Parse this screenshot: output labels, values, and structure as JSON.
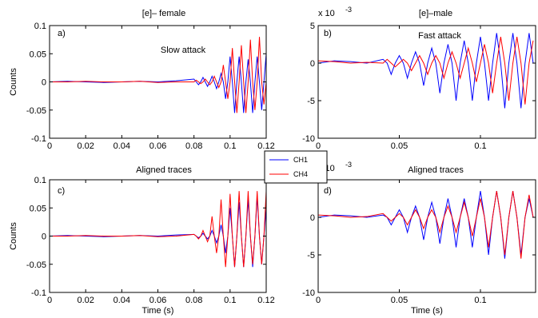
{
  "chart_data": [
    {
      "type": "line",
      "title": "[e]– female",
      "annotations": [
        "a)",
        "Slow attack"
      ],
      "ylabel": "Counts",
      "x": [
        0,
        0.01,
        0.02,
        0.03,
        0.04,
        0.05,
        0.06,
        0.07,
        0.08,
        0.08125,
        0.0825,
        0.08375,
        0.085,
        0.08625,
        0.0875,
        0.08875,
        0.09,
        0.09125,
        0.0925,
        0.09375,
        0.095,
        0.09625,
        0.0975,
        0.09875,
        0.1,
        0.10125,
        0.1025,
        0.10375,
        0.105,
        0.10625,
        0.1075,
        0.10875,
        0.11,
        0.11125,
        0.1125,
        0.11375,
        0.115,
        0.11625,
        0.1175,
        0.11875,
        0.12
      ],
      "series": [
        {
          "name": "CH1",
          "color": "#0000ff",
          "values": [
            0,
            0.001,
            0,
            -0.001,
            0,
            0.001,
            0,
            0.002,
            0.005,
            0,
            -0.005,
            0,
            0.008,
            0,
            -0.008,
            0,
            0.01,
            0,
            -0.012,
            0,
            0.015,
            0,
            -0.03,
            0,
            0.045,
            0,
            -0.055,
            0,
            0.045,
            0,
            -0.055,
            0,
            0.04,
            0,
            -0.055,
            0,
            0.045,
            0,
            -0.05,
            0,
            0.05
          ]
        },
        {
          "name": "CH4",
          "color": "#ff0000",
          "values": [
            0,
            0,
            0.001,
            0,
            0,
            0.001,
            -0.001,
            0,
            0,
            0.003,
            0,
            -0.003,
            0,
            0.005,
            0,
            -0.005,
            0,
            0.01,
            0,
            -0.01,
            0,
            0.03,
            0,
            -0.03,
            0,
            0.06,
            0,
            -0.055,
            0,
            0.065,
            0,
            -0.055,
            0,
            0.075,
            0,
            -0.05,
            0,
            0.08,
            0,
            -0.04,
            0
          ]
        }
      ],
      "xlim": [
        0,
        0.12
      ],
      "xticks": [
        0,
        0.02,
        0.04,
        0.06,
        0.08,
        0.1,
        0.12
      ],
      "ylim": [
        -0.1,
        0.1
      ],
      "yticks": [
        -0.1,
        -0.05,
        0,
        0.05,
        0.1
      ]
    },
    {
      "type": "line",
      "title": "[e]–male",
      "annotations": [
        "b)",
        "Fast attack"
      ],
      "y_scale": {
        "base": "x 10",
        "exponent": "-3"
      },
      "x": [
        0,
        0.01,
        0.02,
        0.03,
        0.04,
        0.0425,
        0.045,
        0.0475,
        0.05,
        0.0525,
        0.055,
        0.0575,
        0.06,
        0.0625,
        0.065,
        0.0675,
        0.07,
        0.0725,
        0.075,
        0.0775,
        0.08,
        0.0825,
        0.085,
        0.0875,
        0.09,
        0.0925,
        0.095,
        0.0975,
        0.1,
        0.1025,
        0.105,
        0.1075,
        0.11,
        0.1125,
        0.115,
        0.1175,
        0.12,
        0.1225,
        0.125,
        0.1275,
        0.13,
        0.1325
      ],
      "series": [
        {
          "color": "#0000ff",
          "values": [
            0,
            0.3,
            0.2,
            0,
            0.5,
            0,
            -1.5,
            0,
            1,
            0,
            -2,
            0,
            1.5,
            0,
            -3,
            0,
            2,
            0,
            -4,
            0,
            2.5,
            0,
            -5,
            0,
            3,
            0,
            -5,
            0,
            3.5,
            0,
            -5,
            0,
            4,
            0,
            -6,
            0,
            4,
            0,
            -6,
            0,
            4,
            0
          ]
        },
        {
          "color": "#ff0000",
          "values": [
            0.3,
            0.2,
            0,
            0.1,
            0,
            0.5,
            0,
            -0.5,
            0,
            0.5,
            0,
            -1,
            0,
            1,
            0,
            -1.5,
            0,
            1,
            0,
            -2,
            0,
            1.5,
            0,
            -2,
            0,
            2,
            0,
            -2.5,
            0,
            2.5,
            0,
            -4,
            0,
            3.5,
            0,
            -5,
            0,
            3.5,
            0,
            -5.5,
            0,
            3
          ]
        }
      ],
      "xlim": [
        0,
        0.134
      ],
      "xticks": [
        0,
        0.05,
        0.1
      ],
      "ylim": [
        -10,
        5
      ],
      "yticks": [
        -10,
        -5,
        0,
        5
      ]
    },
    {
      "type": "line",
      "title": "Aligned traces",
      "annotations": [
        "c)"
      ],
      "ylabel": "Counts",
      "xlabel": "Time (s)",
      "x": [
        0,
        0.01,
        0.02,
        0.03,
        0.04,
        0.05,
        0.06,
        0.07,
        0.08,
        0.08125,
        0.0825,
        0.08375,
        0.085,
        0.08625,
        0.0875,
        0.08875,
        0.09,
        0.09125,
        0.0925,
        0.09375,
        0.095,
        0.09625,
        0.0975,
        0.09875,
        0.1,
        0.10125,
        0.1025,
        0.10375,
        0.105,
        0.10625,
        0.1075,
        0.10875,
        0.11,
        0.11125,
        0.1125,
        0.11375,
        0.115,
        0.11625,
        0.1175,
        0.11875,
        0.12
      ],
      "series": [
        {
          "color": "#0000ff",
          "values": [
            0,
            0.001,
            0,
            -0.001,
            0,
            0.001,
            0,
            0.002,
            0.003,
            0,
            -0.003,
            0,
            0.005,
            0,
            -0.005,
            0,
            0.01,
            0,
            -0.012,
            0,
            0.02,
            0,
            -0.03,
            0,
            0.05,
            0,
            -0.055,
            0,
            0.06,
            0,
            -0.055,
            0,
            0.065,
            0,
            -0.055,
            0,
            0.07,
            0,
            -0.05,
            0,
            0.05
          ]
        },
        {
          "color": "#ff0000",
          "values": [
            0,
            0,
            0.001,
            0,
            0,
            0.001,
            -0.001,
            0,
            0.003,
            0,
            -0.005,
            0,
            0.01,
            0,
            -0.01,
            0,
            0.035,
            0,
            -0.03,
            0,
            0.065,
            0,
            -0.055,
            0,
            0.075,
            0,
            -0.055,
            0,
            0.08,
            0,
            -0.055,
            0,
            0.08,
            0,
            -0.05,
            0,
            0.08,
            0,
            -0.05,
            0,
            0.08
          ]
        }
      ],
      "xlim": [
        0,
        0.12
      ],
      "xticks": [
        0,
        0.02,
        0.04,
        0.06,
        0.08,
        0.1,
        0.12
      ],
      "ylim": [
        -0.1,
        0.1
      ],
      "yticks": [
        -0.1,
        -0.05,
        0,
        0.05,
        0.1
      ]
    },
    {
      "type": "line",
      "title": "Aligned traces",
      "annotations": [
        "d)"
      ],
      "xlabel": "Time (s)",
      "y_scale": {
        "base": "x 10",
        "exponent": "-3"
      },
      "x": [
        0,
        0.01,
        0.02,
        0.03,
        0.04,
        0.0425,
        0.045,
        0.0475,
        0.05,
        0.0525,
        0.055,
        0.0575,
        0.06,
        0.0625,
        0.065,
        0.0675,
        0.07,
        0.0725,
        0.075,
        0.0775,
        0.08,
        0.0825,
        0.085,
        0.0875,
        0.09,
        0.0925,
        0.095,
        0.0975,
        0.1,
        0.1025,
        0.105,
        0.1075,
        0.11,
        0.1125,
        0.115,
        0.1175,
        0.12,
        0.1225,
        0.125,
        0.1275,
        0.13,
        0.1325
      ],
      "series": [
        {
          "color": "#0000ff",
          "values": [
            0,
            0.3,
            0.2,
            0,
            0.3,
            0,
            -1,
            0,
            1,
            0,
            -2,
            0,
            1.5,
            0,
            -3,
            0,
            2,
            0,
            -3.5,
            0,
            2.5,
            0,
            -4,
            0,
            2.5,
            0,
            -4,
            0,
            3.5,
            0,
            -5,
            0,
            3.5,
            0,
            -5.5,
            0,
            3.5,
            0,
            -5,
            0,
            2.5,
            0
          ]
        },
        {
          "color": "#ff0000",
          "values": [
            0.3,
            0.2,
            0,
            0.1,
            0.5,
            0,
            -0.5,
            0,
            0.5,
            0,
            -1,
            0,
            1,
            0,
            -1.5,
            0,
            1,
            0,
            -2,
            0,
            1.5,
            0,
            -2,
            0,
            2,
            0,
            -2.5,
            0,
            2.5,
            0,
            -4,
            0,
            3.5,
            0,
            -5,
            0,
            3.5,
            0,
            -5.5,
            0,
            3,
            0
          ]
        }
      ],
      "xlim": [
        0,
        0.134
      ],
      "xticks": [
        0,
        0.05,
        0.1
      ],
      "ylim": [
        -10,
        5
      ],
      "yticks": [
        -10,
        -5,
        0,
        5
      ]
    }
  ]
}
